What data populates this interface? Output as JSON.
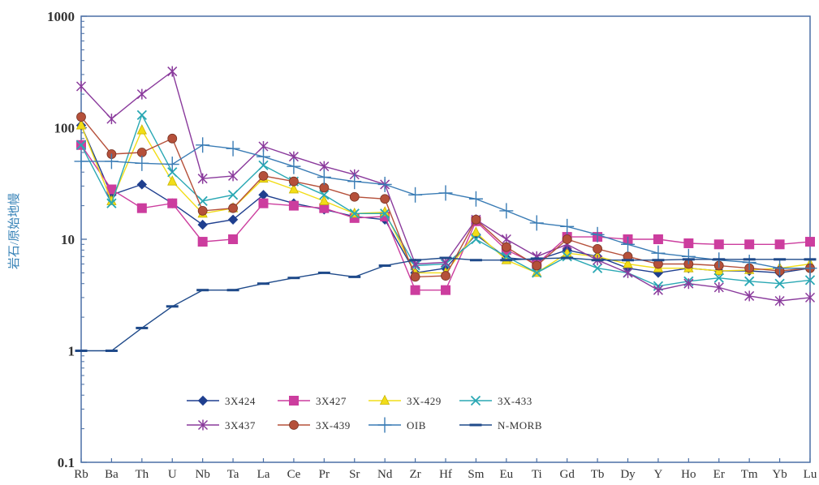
{
  "chart_data": {
    "type": "line",
    "ylabel": "岩石/原始地幔",
    "yscale": "log",
    "ylim": [
      0.1,
      1000
    ],
    "yticks": [
      "0.1",
      "1",
      "10",
      "100",
      "1000"
    ],
    "categories": [
      "Rb",
      "Ba",
      "Th",
      "U",
      "Nb",
      "Ta",
      "La",
      "Ce",
      "Pr",
      "Sr",
      "Nd",
      "Zr",
      "Hf",
      "Sm",
      "Eu",
      "Ti",
      "Gd",
      "Tb",
      "Dy",
      "Y",
      "Ho",
      "Er",
      "Tm",
      "Yb",
      "Lu"
    ],
    "legend_position": "bottom-left",
    "series": [
      {
        "name": "3X424",
        "color": "#1f3f8f",
        "marker": "diamond",
        "values": [
          105,
          25,
          31,
          21,
          13.5,
          15,
          25,
          21,
          18.5,
          16,
          15,
          5,
          5.5,
          11,
          6.8,
          6.5,
          8,
          7,
          5.5,
          5,
          5.5,
          5.2,
          5.2,
          5,
          5.5
        ]
      },
      {
        "name": "3X427",
        "color": "#cc3d9e",
        "marker": "square",
        "values": [
          70,
          28,
          19,
          21,
          9.5,
          10,
          21,
          20,
          19,
          15.5,
          16,
          3.5,
          3.5,
          14.5,
          8,
          6,
          10.5,
          10.5,
          10,
          10,
          9.2,
          9,
          9,
          9,
          9.5
        ]
      },
      {
        "name": "3X-429",
        "color": "#f2dd18",
        "marker": "triangle",
        "values": [
          105,
          22,
          95,
          33,
          17,
          19,
          35,
          28,
          22,
          17,
          17.5,
          5,
          5,
          11.5,
          6.5,
          5,
          7.5,
          7,
          6,
          5.5,
          5.5,
          5.2,
          5.3,
          5.5,
          6
        ]
      },
      {
        "name": "3X-433",
        "color": "#2aa8b4",
        "marker": "x",
        "values": [
          70,
          21,
          130,
          40,
          22,
          25,
          46,
          33,
          25,
          17,
          17,
          5.8,
          6,
          10,
          7,
          5,
          7,
          5.5,
          5,
          3.8,
          4.2,
          4.5,
          4.2,
          4.0,
          4.3
        ]
      },
      {
        "name": "3X437",
        "color": "#8a3a9c",
        "marker": "star",
        "values": [
          235,
          120,
          200,
          320,
          35,
          37,
          68,
          55,
          45,
          38,
          31,
          6,
          6.2,
          15,
          10,
          7,
          9,
          6.5,
          5,
          3.5,
          4,
          3.7,
          3.1,
          2.8,
          3.0
        ]
      },
      {
        "name": "3X-439",
        "color": "#b5503a",
        "marker": "circle",
        "values": [
          125,
          58,
          60,
          80,
          18,
          19,
          37,
          33,
          29,
          24,
          23,
          4.6,
          4.7,
          15,
          8.5,
          5.8,
          10,
          8.2,
          7,
          6,
          6,
          5.8,
          5.5,
          5.2,
          5.5
        ]
      },
      {
        "name": "OIB",
        "color": "#3a7cb5",
        "marker": "plus",
        "values": [
          50,
          50,
          48,
          47,
          70,
          65,
          55,
          45,
          36,
          33,
          31,
          25,
          26,
          23,
          18,
          14,
          13,
          11,
          9,
          7.5,
          7,
          6.5,
          6.2,
          5.5,
          5.5
        ]
      },
      {
        "name": "N-MORB",
        "color": "#1f4a8a",
        "marker": "dash",
        "values": [
          1,
          1,
          1.6,
          2.5,
          3.5,
          3.5,
          4,
          4.5,
          5,
          4.6,
          5.8,
          6.5,
          6.8,
          6.5,
          6.5,
          6.7,
          6.8,
          6.5,
          6.5,
          6.5,
          6.6,
          6.6,
          6.6,
          6.6,
          6.6
        ]
      }
    ]
  }
}
